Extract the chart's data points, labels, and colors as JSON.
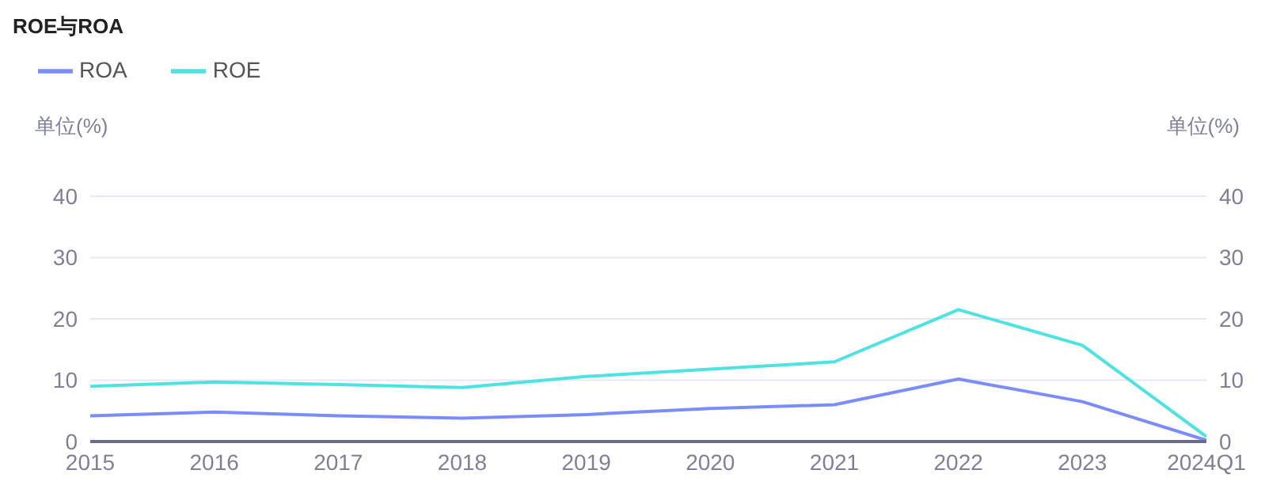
{
  "chart_data": {
    "type": "line",
    "title": "ROE与ROA",
    "ylabel": "单位(%)",
    "y2label": "单位(%)",
    "categories": [
      "2015",
      "2016",
      "2017",
      "2018",
      "2019",
      "2020",
      "2021",
      "2022",
      "2023",
      "2024Q1"
    ],
    "series": [
      {
        "name": "ROE",
        "color": "#4de3e0",
        "values": [
          9.0,
          9.7,
          9.3,
          8.8,
          10.6,
          11.8,
          13.0,
          21.5,
          15.7,
          0.8
        ]
      },
      {
        "name": "ROA",
        "color": "#7b8cff",
        "values": [
          4.2,
          4.8,
          4.2,
          3.8,
          4.4,
          5.4,
          6.0,
          10.2,
          6.5,
          0.2
        ]
      }
    ],
    "ylim": [
      0,
      40
    ],
    "yticks": [
      0,
      10,
      20,
      30,
      40
    ],
    "y2lim": [
      0,
      40
    ],
    "y2ticks": [
      0,
      10,
      20,
      30,
      40
    ],
    "grid": "y",
    "legend": "top left",
    "marker": "none",
    "line_style": "solid"
  }
}
